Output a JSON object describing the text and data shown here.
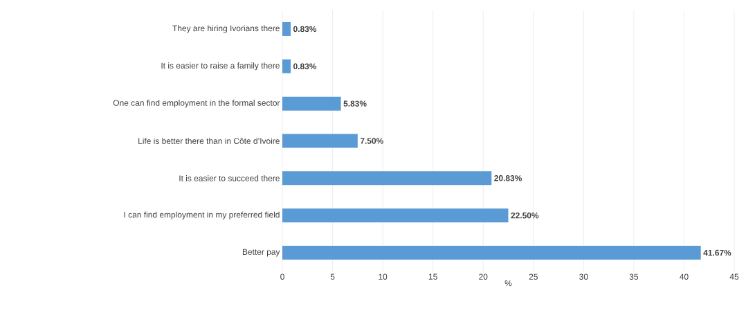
{
  "chart_data": {
    "type": "bar",
    "orientation": "horizontal",
    "xlabel": "%",
    "categories": [
      "They are hiring Ivorians there",
      "It is easier to raise a family there",
      "One can find employment in the formal sector",
      "Life is better there than in Côte d’Ivoire",
      "It is easier to succeed there",
      "I can find employment in my preferred field",
      "Better pay"
    ],
    "values": [
      0.83,
      0.83,
      5.83,
      7.5,
      20.83,
      22.5,
      41.67
    ],
    "value_labels": [
      "0.83%",
      "0.83%",
      "5.83%",
      "7.50%",
      "20.83%",
      "22.50%",
      "41.67%"
    ],
    "color": "#5b9bd5",
    "xlim": [
      0,
      45
    ],
    "xticks": [
      0,
      5,
      10,
      15,
      20,
      25,
      30,
      35,
      40,
      45
    ],
    "grid": "x"
  }
}
